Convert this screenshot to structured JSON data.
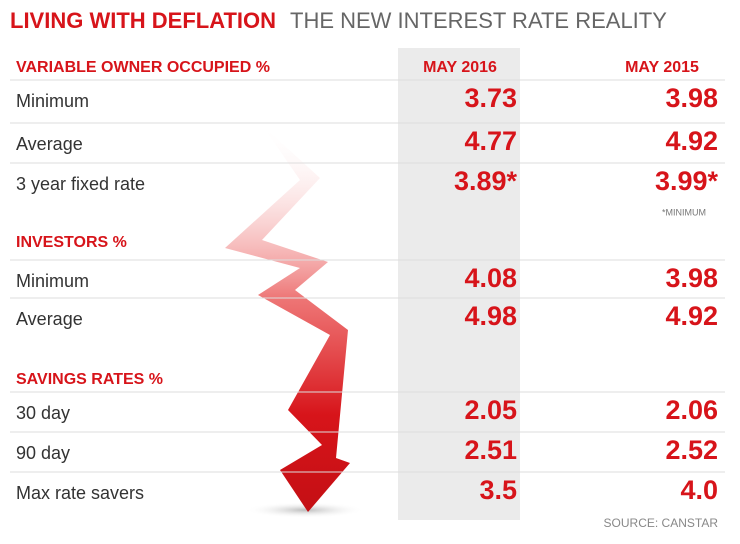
{
  "header": {
    "title": "LIVING WITH DEFLATION",
    "subtitle": "THE NEW INTEREST RATE REALITY"
  },
  "columns": [
    "MAY 2016",
    "MAY 2015"
  ],
  "sections": [
    {
      "heading": "VARIABLE OWNER OCCUPIED %",
      "rows": [
        {
          "label": "Minimum",
          "values": [
            "3.73",
            "3.98"
          ]
        },
        {
          "label": "Average",
          "values": [
            "4.77",
            "4.92"
          ]
        },
        {
          "label": "3 year fixed rate",
          "values": [
            "3.89*",
            "3.99*"
          ]
        }
      ],
      "note": "*MINIMUM"
    },
    {
      "heading": "INVESTORS %",
      "rows": [
        {
          "label": "Minimum",
          "values": [
            "4.08",
            "3.98"
          ]
        },
        {
          "label": "Average",
          "values": [
            "4.98",
            "4.92"
          ]
        }
      ]
    },
    {
      "heading": "SAVINGS RATES %",
      "rows": [
        {
          "label": "30 day",
          "values": [
            "2.05",
            "2.06"
          ]
        },
        {
          "label": "90 day",
          "values": [
            "2.51",
            "2.52"
          ]
        },
        {
          "label": "Max rate savers",
          "values": [
            "3.5",
            "4.0"
          ]
        }
      ]
    }
  ],
  "source": "SOURCE: CANSTAR"
}
